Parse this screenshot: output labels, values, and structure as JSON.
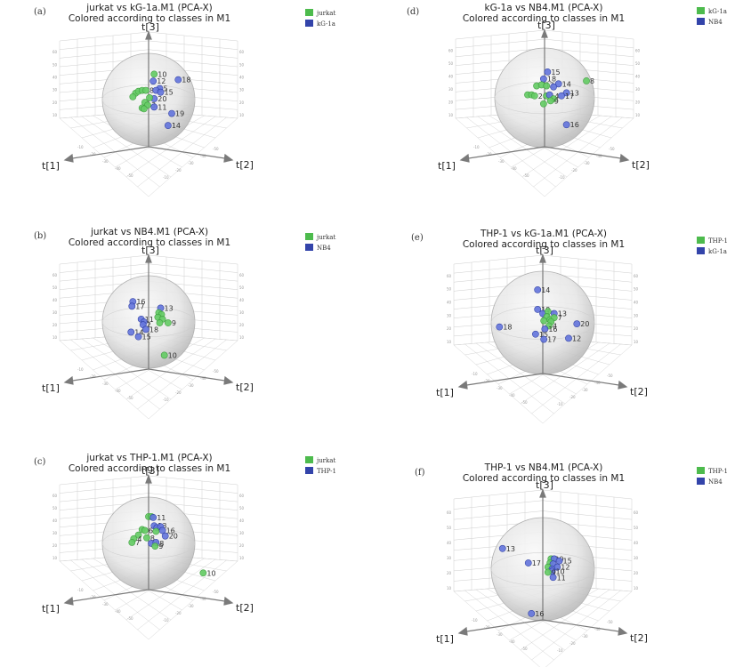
{
  "colors": {
    "green": "#66cc66",
    "green_dark": "#3a9a3a",
    "blue": "#6677dd",
    "blue_dark": "#2a3aa0",
    "green_swatch": "#4dbb4d",
    "blue_swatch": "#3344aa"
  },
  "axis_names": {
    "x": "t[1]",
    "y": "t[2]",
    "z": "t[3]"
  },
  "chart_data": [
    {
      "type": "scatter",
      "panel": "(a)",
      "title_line1": "jurkat vs kG-1a.M1 (PCA-X)",
      "title_line2": "Colored according to classes in M1",
      "legend": [
        {
          "label": "jurkat",
          "color": "#4dbb4d"
        },
        {
          "label": "kG-1a",
          "color": "#3344aa"
        }
      ],
      "ticks": [
        "10",
        "20",
        "30",
        "40",
        "50",
        "60",
        "-10",
        "-20",
        "-30",
        "-40",
        "-50"
      ],
      "points": [
        {
          "label": "10",
          "class": 0,
          "u": 0.12,
          "v": 0.55
        },
        {
          "label": "12",
          "class": 1,
          "u": 0.1,
          "v": 0.4
        },
        {
          "label": "18",
          "class": 1,
          "u": 0.64,
          "v": 0.43
        },
        {
          "label": "",
          "class": 0,
          "u": -0.28,
          "v": 0.14
        },
        {
          "label": "",
          "class": 0,
          "u": -0.22,
          "v": 0.18
        },
        {
          "label": "",
          "class": 0,
          "u": -0.14,
          "v": 0.2
        },
        {
          "label": "8",
          "class": 0,
          "u": -0.06,
          "v": 0.2
        },
        {
          "label": "",
          "class": 0,
          "u": -0.34,
          "v": 0.06
        },
        {
          "label": "5",
          "class": 1,
          "u": 0.24,
          "v": 0.24
        },
        {
          "label": "",
          "class": 1,
          "u": 0.16,
          "v": 0.2
        },
        {
          "label": "15",
          "class": 1,
          "u": 0.26,
          "v": 0.16
        },
        {
          "label": "20",
          "class": 1,
          "u": 0.12,
          "v": 0.02
        },
        {
          "label": "",
          "class": 0,
          "u": 0.02,
          "v": 0.04
        },
        {
          "label": "",
          "class": 0,
          "u": -0.08,
          "v": -0.06
        },
        {
          "label": "3",
          "class": 0,
          "u": -0.02,
          "v": -0.12
        },
        {
          "label": "",
          "class": 0,
          "u": -0.14,
          "v": -0.18
        },
        {
          "label": "11",
          "class": 1,
          "u": 0.12,
          "v": -0.16
        },
        {
          "label": "",
          "class": 0,
          "u": -0.1,
          "v": -0.2
        },
        {
          "label": "19",
          "class": 1,
          "u": 0.5,
          "v": -0.3
        },
        {
          "label": "14",
          "class": 1,
          "u": 0.42,
          "v": -0.56
        }
      ]
    },
    {
      "type": "scatter",
      "panel": "(b)",
      "title_line1": "jurkat vs NB4.M1 (PCA-X)",
      "title_line2": "Colored according to classes in M1",
      "legend": [
        {
          "label": "jurkat",
          "color": "#4dbb4d"
        },
        {
          "label": "NB4",
          "color": "#3344aa"
        }
      ],
      "ticks": [
        "10",
        "20",
        "30",
        "40",
        "50",
        "60",
        "-10",
        "-20",
        "-30",
        "-40",
        "-50"
      ],
      "points": [
        {
          "label": "16",
          "class": 1,
          "u": -0.34,
          "v": 0.44
        },
        {
          "label": "17",
          "class": 1,
          "u": -0.36,
          "v": 0.34
        },
        {
          "label": "13",
          "class": 1,
          "u": 0.26,
          "v": 0.3
        },
        {
          "label": "",
          "class": 0,
          "u": 0.22,
          "v": 0.2
        },
        {
          "label": "",
          "class": 0,
          "u": 0.28,
          "v": 0.16
        },
        {
          "label": "",
          "class": 0,
          "u": 0.2,
          "v": 0.1
        },
        {
          "label": "",
          "class": 0,
          "u": 0.3,
          "v": 0.06
        },
        {
          "label": "9",
          "class": 0,
          "u": 0.42,
          "v": -0.02
        },
        {
          "label": "",
          "class": 0,
          "u": 0.24,
          "v": -0.02
        },
        {
          "label": "11",
          "class": 1,
          "u": -0.16,
          "v": 0.06
        },
        {
          "label": "",
          "class": 1,
          "u": -0.1,
          "v": 0.0
        },
        {
          "label": "2",
          "class": 1,
          "u": -0.12,
          "v": -0.06
        },
        {
          "label": "18",
          "class": 1,
          "u": -0.06,
          "v": -0.16
        },
        {
          "label": "14",
          "class": 1,
          "u": -0.38,
          "v": -0.22
        },
        {
          "label": "15",
          "class": 1,
          "u": -0.22,
          "v": -0.32
        },
        {
          "label": "10",
          "class": 0,
          "u": 0.34,
          "v": -0.72
        }
      ]
    },
    {
      "type": "scatter",
      "panel": "(c)",
      "title_line1": "jurkat vs THP-1.M1 (PCA-X)",
      "title_line2": "Colored according to classes in M1",
      "legend": [
        {
          "label": "jurkat",
          "color": "#4dbb4d"
        },
        {
          "label": "THP-1",
          "color": "#3344aa"
        }
      ],
      "ticks": [
        "10",
        "20",
        "30",
        "40",
        "50",
        "60",
        "-10",
        "-20",
        "-30",
        "-40",
        "-50"
      ],
      "points": [
        {
          "label": "",
          "class": 0,
          "u": 0.0,
          "v": 0.58
        },
        {
          "label": "",
          "class": 0,
          "u": 0.06,
          "v": 0.58
        },
        {
          "label": "11",
          "class": 1,
          "u": 0.1,
          "v": 0.56
        },
        {
          "label": "13",
          "class": 1,
          "u": 0.12,
          "v": 0.38
        },
        {
          "label": "",
          "class": 1,
          "u": 0.18,
          "v": 0.34
        },
        {
          "label": "",
          "class": 1,
          "u": 0.26,
          "v": 0.36
        },
        {
          "label": "16",
          "class": 1,
          "u": 0.3,
          "v": 0.28
        },
        {
          "label": "",
          "class": 0,
          "u": 0.16,
          "v": 0.26
        },
        {
          "label": "20",
          "class": 1,
          "u": 0.36,
          "v": 0.16
        },
        {
          "label": "",
          "class": 0,
          "u": -0.14,
          "v": 0.3
        },
        {
          "label": "6",
          "class": 0,
          "u": -0.08,
          "v": 0.28
        },
        {
          "label": "",
          "class": 0,
          "u": -0.22,
          "v": 0.18
        },
        {
          "label": "8",
          "class": 0,
          "u": -0.04,
          "v": 0.12
        },
        {
          "label": "4",
          "class": 0,
          "u": -0.32,
          "v": 0.1
        },
        {
          "label": "7",
          "class": 0,
          "u": -0.36,
          "v": 0.02
        },
        {
          "label": "18",
          "class": 1,
          "u": 0.06,
          "v": 0.0
        },
        {
          "label": "",
          "class": 1,
          "u": 0.16,
          "v": 0.02
        },
        {
          "label": "9",
          "class": 0,
          "u": 0.14,
          "v": -0.06
        },
        {
          "label": "10",
          "class": 0,
          "u": 1.18,
          "v": -0.64
        }
      ]
    },
    {
      "type": "scatter",
      "panel": "(d)",
      "title_line1": "kG-1a vs NB4.M1 (PCA-X)",
      "title_line2": "Colored according to classes in M1",
      "legend": [
        {
          "label": "kG-1a",
          "color": "#4dbb4d"
        },
        {
          "label": "NB4",
          "color": "#3344aa"
        }
      ],
      "ticks": [
        "10",
        "20",
        "30",
        "40",
        "50",
        "60",
        "-10",
        "-20",
        "-30",
        "-40",
        "-50"
      ],
      "points": [
        {
          "label": "15",
          "class": 1,
          "u": 0.06,
          "v": 0.52
        },
        {
          "label": "8",
          "class": 0,
          "u": 0.84,
          "v": 0.34
        },
        {
          "label": "18",
          "class": 1,
          "u": -0.02,
          "v": 0.38
        },
        {
          "label": "",
          "class": 0,
          "u": -0.16,
          "v": 0.24
        },
        {
          "label": "12",
          "class": 0,
          "u": -0.06,
          "v": 0.26
        },
        {
          "label": "",
          "class": 0,
          "u": 0.04,
          "v": 0.24
        },
        {
          "label": "14",
          "class": 1,
          "u": 0.28,
          "v": 0.28
        },
        {
          "label": "",
          "class": 1,
          "u": 0.18,
          "v": 0.22
        },
        {
          "label": "",
          "class": 0,
          "u": -0.34,
          "v": 0.06
        },
        {
          "label": "",
          "class": 0,
          "u": -0.26,
          "v": 0.06
        },
        {
          "label": "20",
          "class": 0,
          "u": -0.2,
          "v": 0.04
        },
        {
          "label": "14",
          "class": 0,
          "u": 0.04,
          "v": 0.04
        },
        {
          "label": "",
          "class": 1,
          "u": 0.1,
          "v": 0.06
        },
        {
          "label": "13",
          "class": 1,
          "u": 0.44,
          "v": 0.1
        },
        {
          "label": "17",
          "class": 1,
          "u": 0.34,
          "v": 0.04
        },
        {
          "label": "",
          "class": 0,
          "u": 0.18,
          "v": -0.02
        },
        {
          "label": "9",
          "class": 0,
          "u": 0.12,
          "v": -0.06
        },
        {
          "label": "",
          "class": 0,
          "u": -0.02,
          "v": -0.12
        },
        {
          "label": "16",
          "class": 1,
          "u": 0.44,
          "v": -0.54
        }
      ]
    },
    {
      "type": "scatter",
      "panel": "(e)",
      "title_line1": "THP-1 vs kG-1a.M1 (PCA-X)",
      "title_line2": "Colored according to classes in M1",
      "legend": [
        {
          "label": "THP-1",
          "color": "#4dbb4d"
        },
        {
          "label": "kG-1a",
          "color": "#3344aa"
        }
      ],
      "ticks": [
        "10",
        "20",
        "30",
        "40",
        "50",
        "60",
        "-10",
        "-20",
        "-30",
        "-40",
        "-50"
      ],
      "points": [
        {
          "label": "14",
          "class": 1,
          "u": -0.1,
          "v": 0.64
        },
        {
          "label": "19",
          "class": 1,
          "u": -0.1,
          "v": 0.26
        },
        {
          "label": "11",
          "class": 1,
          "u": 0.0,
          "v": 0.18
        },
        {
          "label": "",
          "class": 0,
          "u": 0.1,
          "v": 0.22
        },
        {
          "label": "13",
          "class": 1,
          "u": 0.22,
          "v": 0.18
        },
        {
          "label": "",
          "class": 0,
          "u": 0.08,
          "v": 0.12
        },
        {
          "label": "",
          "class": 0,
          "u": 0.14,
          "v": 0.06
        },
        {
          "label": "7",
          "class": 0,
          "u": 0.22,
          "v": 0.1
        },
        {
          "label": "",
          "class": 0,
          "u": 0.16,
          "v": 0.02
        },
        {
          "label": "4",
          "class": 0,
          "u": 0.12,
          "v": -0.06
        },
        {
          "label": "",
          "class": 0,
          "u": 0.02,
          "v": 0.04
        },
        {
          "label": "20",
          "class": 1,
          "u": 0.66,
          "v": -0.02
        },
        {
          "label": "16",
          "class": 1,
          "u": 0.04,
          "v": -0.12
        },
        {
          "label": "18",
          "class": 1,
          "u": -0.84,
          "v": -0.08
        },
        {
          "label": "15",
          "class": 1,
          "u": -0.14,
          "v": -0.22
        },
        {
          "label": "17",
          "class": 1,
          "u": 0.02,
          "v": -0.32
        },
        {
          "label": "12",
          "class": 1,
          "u": 0.5,
          "v": -0.3
        }
      ]
    },
    {
      "type": "scatter",
      "panel": "(f)",
      "title_line1": "THP-1 vs NB4.M1 (PCA-X)",
      "title_line2": "Colored according to classes in M1",
      "legend": [
        {
          "label": "THP-1",
          "color": "#4dbb4d"
        },
        {
          "label": "NB4",
          "color": "#3344aa"
        }
      ],
      "ticks": [
        "10",
        "20",
        "30",
        "40",
        "50",
        "60",
        "-10",
        "-20",
        "-30",
        "-40",
        "-50"
      ],
      "points": [
        {
          "label": "13",
          "class": 1,
          "u": -0.78,
          "v": 0.4
        },
        {
          "label": "17",
          "class": 1,
          "u": -0.28,
          "v": 0.12
        },
        {
          "label": "20",
          "class": 0,
          "u": 0.16,
          "v": 0.2
        },
        {
          "label": "",
          "class": 1,
          "u": 0.22,
          "v": 0.2
        },
        {
          "label": "15",
          "class": 1,
          "u": 0.32,
          "v": 0.16
        },
        {
          "label": "",
          "class": 0,
          "u": 0.14,
          "v": 0.12
        },
        {
          "label": "",
          "class": 1,
          "u": 0.2,
          "v": 0.1
        },
        {
          "label": "12",
          "class": 1,
          "u": 0.28,
          "v": 0.04
        },
        {
          "label": "",
          "class": 0,
          "u": 0.1,
          "v": 0.04
        },
        {
          "label": "",
          "class": 1,
          "u": 0.18,
          "v": 0.0
        },
        {
          "label": "10",
          "class": 1,
          "u": 0.18,
          "v": -0.04
        },
        {
          "label": "9",
          "class": 0,
          "u": 0.1,
          "v": -0.06
        },
        {
          "label": "11",
          "class": 1,
          "u": 0.2,
          "v": -0.16
        },
        {
          "label": "16",
          "class": 1,
          "u": -0.22,
          "v": -0.86
        }
      ]
    }
  ]
}
